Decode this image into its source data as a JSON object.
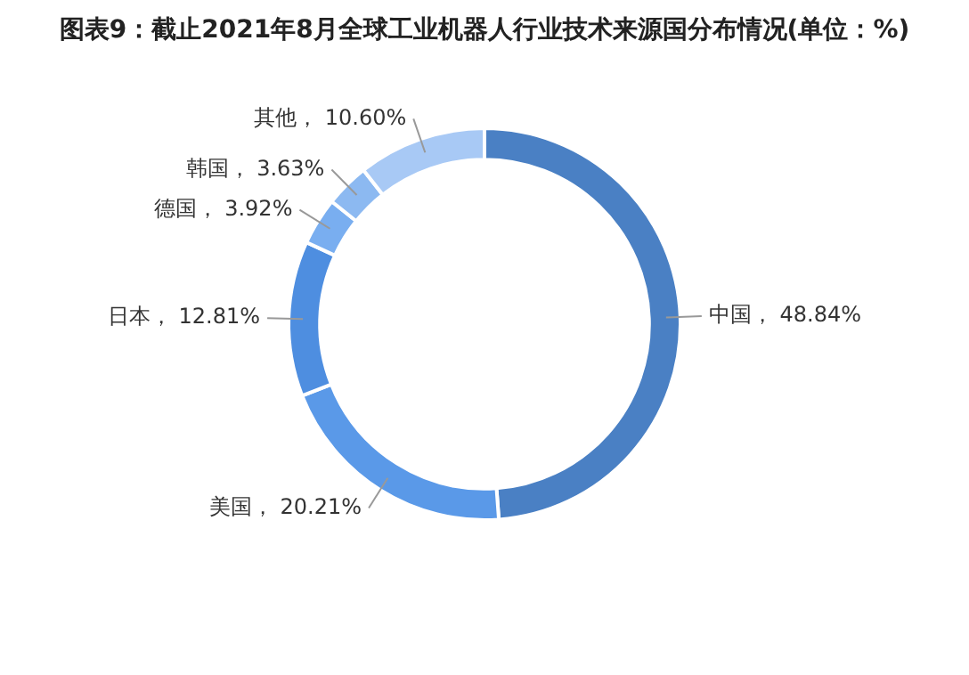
{
  "chart_data": {
    "type": "donut",
    "title": "图表9：截止2021年8月全球工业机器人行业技术来源国分布情况(单位：%)",
    "categories": [
      "中国",
      "美国",
      "日本",
      "德国",
      "韩国",
      "其他"
    ],
    "values": [
      48.84,
      20.21,
      12.81,
      3.92,
      3.63,
      10.6
    ],
    "value_labels": [
      "48.84%",
      "20.21%",
      "12.81%",
      "3.92%",
      "3.63%",
      "10.60%"
    ],
    "colors": [
      "#4a80c4",
      "#5a99e8",
      "#4e8ee0",
      "#79aef0",
      "#8cb9f1",
      "#a8c9f5"
    ],
    "legend": false
  }
}
